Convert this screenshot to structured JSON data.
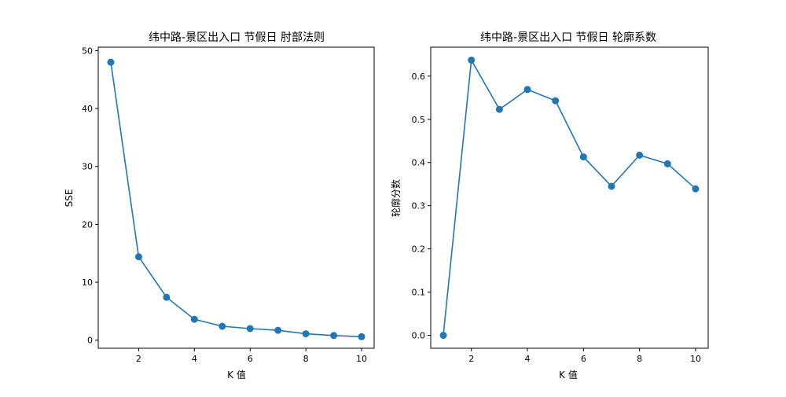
{
  "chart_data": [
    {
      "type": "line",
      "title": "纬中路-景区出入口 节假日 肘部法则",
      "xlabel": "K 值",
      "ylabel": "SSE",
      "x": [
        1,
        2,
        3,
        4,
        5,
        6,
        7,
        8,
        9,
        10
      ],
      "series": [
        {
          "values": [
            48.0,
            14.4,
            7.4,
            3.6,
            2.4,
            2.0,
            1.7,
            1.1,
            0.8,
            0.6
          ],
          "color": "#1f77b4"
        }
      ],
      "xlim": [
        0.55,
        10.45
      ],
      "ylim": [
        -1.4,
        50.6
      ],
      "xticks": [
        2,
        4,
        6,
        8,
        10
      ],
      "yticks": [
        0,
        10,
        20,
        30,
        40,
        50
      ],
      "xtick_labels": [
        "2",
        "4",
        "6",
        "8",
        "10"
      ],
      "ytick_labels": [
        "0",
        "10",
        "20",
        "30",
        "40",
        "50"
      ],
      "marker": "circle",
      "grid": false,
      "legend": "none"
    },
    {
      "type": "line",
      "title": "纬中路-景区出入口 节假日 轮廓系数",
      "xlabel": "K 值",
      "ylabel": "轮廓分数",
      "x": [
        1,
        2,
        3,
        4,
        5,
        6,
        7,
        8,
        9,
        10
      ],
      "series": [
        {
          "values": [
            0.0,
            0.637,
            0.523,
            0.569,
            0.543,
            0.413,
            0.345,
            0.417,
            0.397,
            0.339
          ],
          "color": "#1f77b4"
        }
      ],
      "xlim": [
        0.55,
        10.45
      ],
      "ylim": [
        -0.03,
        0.667
      ],
      "xticks": [
        2,
        4,
        6,
        8,
        10
      ],
      "yticks": [
        0.0,
        0.1,
        0.2,
        0.3,
        0.4,
        0.5,
        0.6
      ],
      "xtick_labels": [
        "2",
        "4",
        "6",
        "8",
        "10"
      ],
      "ytick_labels": [
        "0.0",
        "0.1",
        "0.2",
        "0.3",
        "0.4",
        "0.5",
        "0.6"
      ],
      "marker": "circle",
      "grid": false,
      "legend": "none"
    }
  ]
}
